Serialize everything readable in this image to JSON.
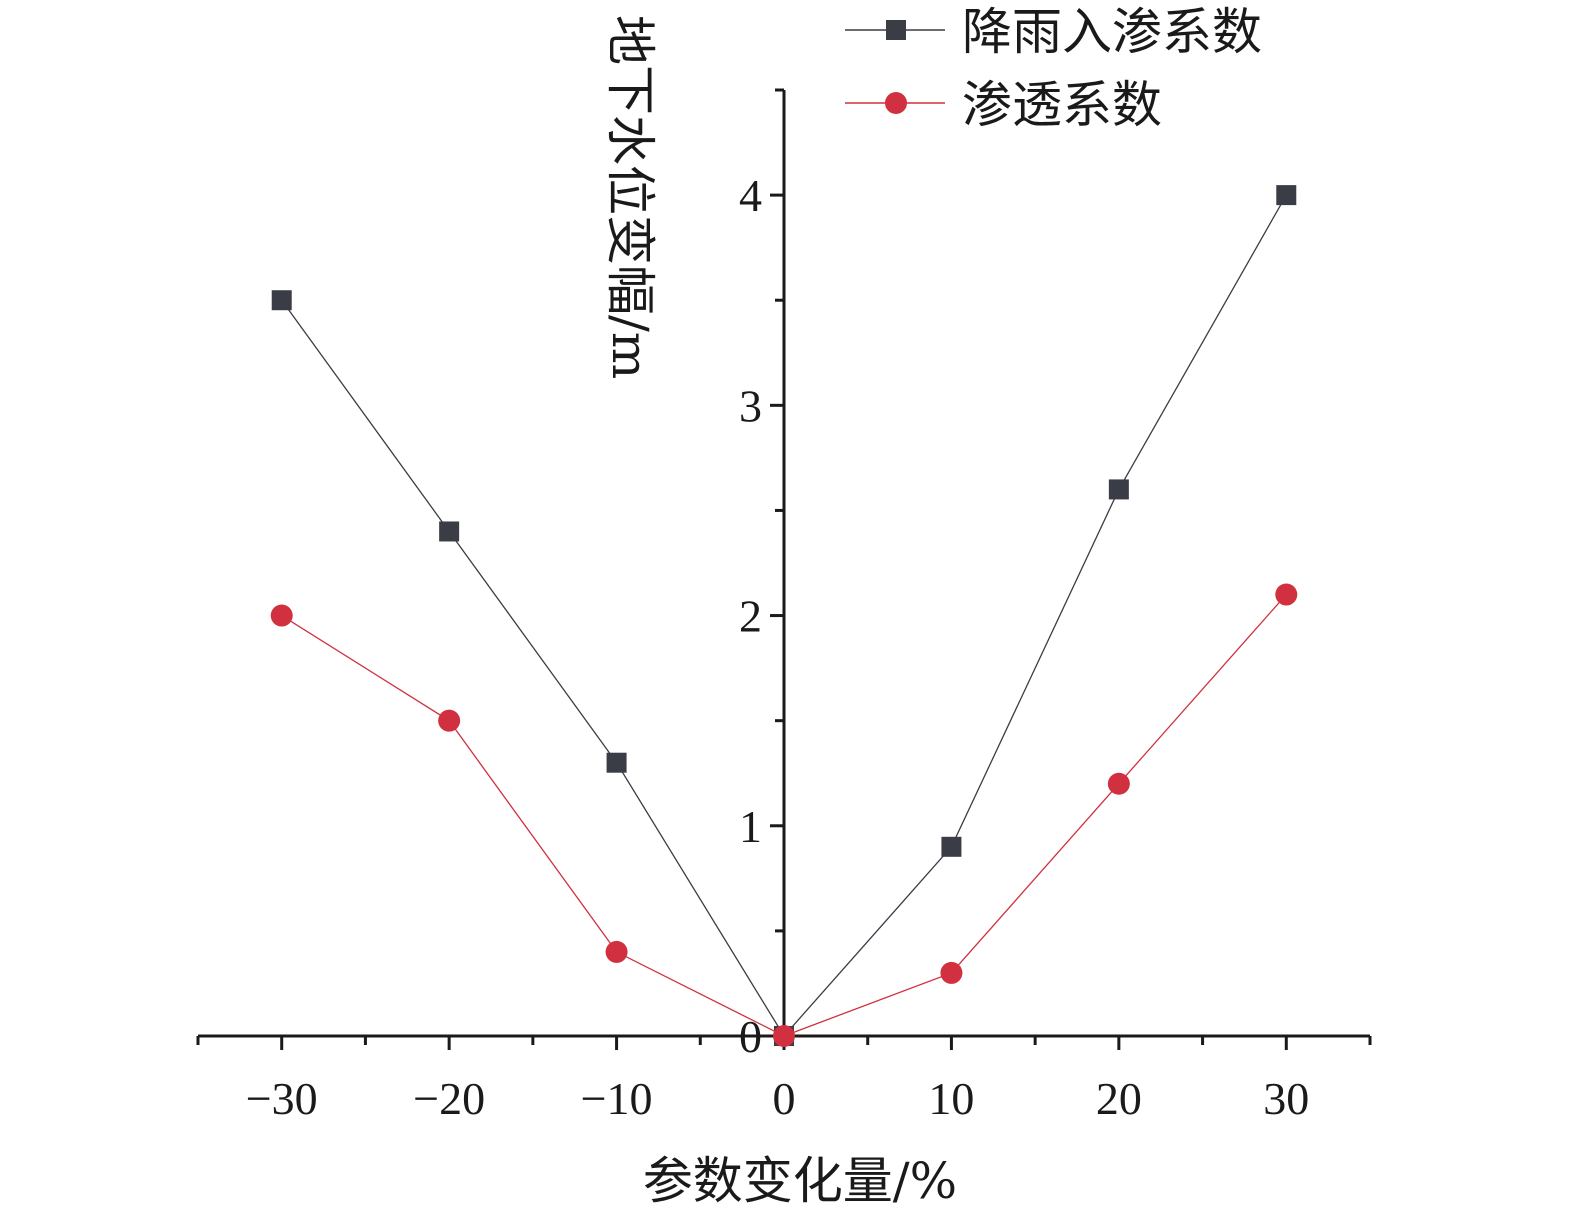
{
  "chart_data": {
    "type": "line",
    "title": "",
    "xlabel": "参数变化量/%",
    "ylabel": "地下水位变幅/m",
    "x": [
      -30,
      -20,
      -10,
      0,
      10,
      20,
      30
    ],
    "xlim": [
      -35,
      35
    ],
    "ylim": [
      0,
      4.5
    ],
    "x_ticks": [
      -30,
      -20,
      -10,
      0,
      10,
      20,
      30
    ],
    "x_tick_labels": [
      "−30",
      "−20",
      "−10",
      "0",
      "10",
      "20",
      "30"
    ],
    "y_ticks": [
      0,
      1,
      2,
      3,
      4
    ],
    "y_tick_labels": [
      "0",
      "1",
      "2",
      "3",
      "4"
    ],
    "grid": false,
    "legend_position": "top-right",
    "series": [
      {
        "name": "降雨入渗系数",
        "values": [
          3.5,
          2.4,
          1.3,
          0,
          0.9,
          2.6,
          4.0
        ],
        "color": "#3a3d45",
        "marker": "square"
      },
      {
        "name": "渗透系数",
        "values": [
          2.0,
          1.5,
          0.4,
          0,
          0.3,
          1.2,
          2.1
        ],
        "color": "#d0303f",
        "marker": "circle"
      }
    ]
  }
}
